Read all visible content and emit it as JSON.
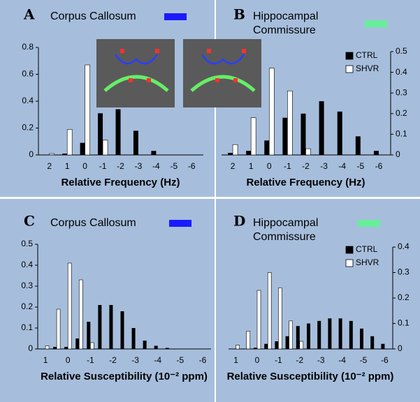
{
  "chart_data": [
    {
      "type": "bar",
      "panel": "A",
      "title": "Corpus Callosum",
      "title_color": "#1a1aff",
      "x_label": "Relative Frequency (Hz)",
      "categories": [
        "2",
        "1",
        "0",
        "-1",
        "-2",
        "-3",
        "-4",
        "-5",
        "-6"
      ],
      "series": [
        {
          "color": "#000000",
          "values": [
            0,
            0.01,
            0.09,
            0.31,
            0.34,
            0.18,
            0.03,
            0,
            0
          ]
        },
        {
          "color": "#ffffff",
          "values": [
            0.01,
            0.19,
            0.67,
            0.11,
            0,
            0,
            0,
            0,
            0
          ]
        }
      ],
      "ylim": [
        0,
        0.8
      ],
      "yticks": [
        0,
        0.2,
        0.4,
        0.6,
        0.8
      ],
      "y_axis_side": "left"
    },
    {
      "type": "bar",
      "panel": "B",
      "title": [
        "Hippocampal",
        "Commissure"
      ],
      "title_color": "#66ee99",
      "x_label": "Relative Frequency (Hz)",
      "categories": [
        "2",
        "1",
        "0",
        "-1",
        "-2",
        "-3",
        "-4",
        "-5",
        "-6"
      ],
      "series": [
        {
          "name": "CTRL",
          "color": "#000000",
          "values": [
            0.01,
            0.02,
            0.07,
            0.18,
            0.2,
            0.26,
            0.21,
            0.09,
            0.02
          ]
        },
        {
          "name": "SHVR",
          "color": "#ffffff",
          "values": [
            0.05,
            0.18,
            0.42,
            0.31,
            0.03,
            0,
            0,
            0,
            0
          ]
        }
      ],
      "ylim": [
        0,
        0.5
      ],
      "yticks": [
        0,
        0.1,
        0.2,
        0.3,
        0.4,
        0.5
      ],
      "y_axis_side": "right"
    },
    {
      "type": "bar",
      "panel": "C",
      "title": "Corpus Callosum",
      "title_color": "#1a1aff",
      "x_label": "Relative Susceptibility (10⁻² ppm)",
      "categories": [
        "1",
        null,
        "0",
        null,
        "-1",
        null,
        "-2",
        null,
        "-3",
        null,
        "-4",
        null,
        "-5",
        null,
        "-6"
      ],
      "series": [
        {
          "color": "#000000",
          "values": [
            0,
            0.01,
            0.01,
            0.05,
            0.13,
            0.21,
            0.21,
            0.18,
            0.1,
            0.04,
            0.015,
            0.005,
            0,
            0,
            0
          ]
        },
        {
          "color": "#ffffff",
          "values": [
            0.015,
            0.19,
            0.41,
            0.33,
            0.03,
            0,
            0,
            0,
            0,
            0,
            0,
            0,
            0,
            0,
            0
          ]
        }
      ],
      "ylim": [
        0,
        0.5
      ],
      "yticks": [
        0,
        0.1,
        0.2,
        0.3,
        0.4,
        0.5
      ],
      "y_axis_side": "left"
    },
    {
      "type": "bar",
      "panel": "D",
      "title": [
        "Hippocampal",
        "Commissure"
      ],
      "title_color": "#66ee99",
      "x_label": "Relative Susceptibility (10⁻² ppm)",
      "categories": [
        "1",
        null,
        "0",
        null,
        "-1",
        null,
        "-2",
        null,
        "-3",
        null,
        "-4",
        null,
        "-5",
        null,
        "-6"
      ],
      "series": [
        {
          "name": "CTRL",
          "color": "#000000",
          "values": [
            0,
            0,
            0.005,
            0.02,
            0.03,
            0.05,
            0.09,
            0.1,
            0.11,
            0.12,
            0.12,
            0.11,
            0.08,
            0.05,
            0.02
          ]
        },
        {
          "name": "SHVR",
          "color": "#ffffff",
          "values": [
            0.015,
            0.07,
            0.23,
            0.3,
            0.24,
            0.11,
            0.03,
            0,
            0,
            0,
            0,
            0,
            0,
            0,
            0
          ]
        }
      ],
      "ylim": [
        0,
        0.4
      ],
      "yticks": [
        0,
        0.1,
        0.2,
        0.3,
        0.4
      ],
      "y_axis_side": "right"
    }
  ]
}
